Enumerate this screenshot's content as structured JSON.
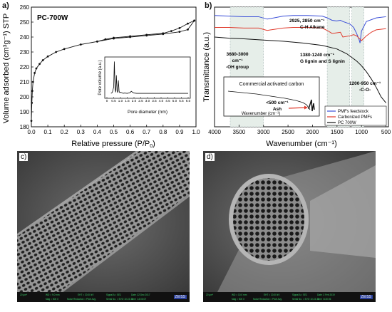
{
  "chart_data": [
    {
      "id": "a",
      "type": "line",
      "panel_label": "a)",
      "title": "PC-700W",
      "xlabel": "Relative pressure (P/P",
      "xlabel_sub": "0",
      "xlabel_tail": ")",
      "ylabel": "Volume adsorbed (cm³g⁻¹) STP",
      "xlim": [
        0,
        1.0
      ],
      "ylim": [
        180,
        260
      ],
      "xticks": [
        "0.0",
        "0.1",
        "0.2",
        "0.3",
        "0.4",
        "0.5",
        "0.6",
        "0.7",
        "0.8",
        "0.9",
        "1.0"
      ],
      "yticks": [
        "180",
        "190",
        "200",
        "210",
        "220",
        "230",
        "240",
        "250",
        "260"
      ],
      "series": [
        {
          "role": "adsorption",
          "x": [
            0.0,
            0.003,
            0.006,
            0.01,
            0.02,
            0.03,
            0.05,
            0.07,
            0.1,
            0.15,
            0.2,
            0.3,
            0.4,
            0.5,
            0.6,
            0.7,
            0.8,
            0.9,
            0.95,
            0.99
          ],
          "y": [
            184,
            196,
            204,
            210,
            216,
            219,
            222,
            224.5,
            227,
            230,
            232,
            235,
            237,
            239,
            240,
            241,
            242,
            243.5,
            245,
            251
          ]
        },
        {
          "role": "desorption",
          "x": [
            0.99,
            0.95,
            0.9,
            0.85,
            0.8,
            0.7,
            0.6,
            0.5,
            0.45,
            0.4
          ],
          "y": [
            251,
            249,
            246,
            244,
            242.5,
            241.5,
            240.5,
            239.5,
            238.5,
            237
          ]
        }
      ],
      "inset": {
        "xlabel": "Pore diameter (nm)",
        "ylabel": "Pore volume (a.u.)",
        "xlim": [
          0,
          6.0
        ],
        "xticks": [
          "0",
          "0.5",
          "1.0",
          "1.5",
          "2.0",
          "2.5",
          "3.0",
          "3.5",
          "4.0",
          "4.5",
          "5.0",
          "5.5",
          "6.0"
        ],
        "x": [
          0.3,
          0.4,
          0.5,
          0.55,
          0.6,
          0.65,
          0.7,
          0.75,
          0.8,
          0.85,
          0.9,
          0.95,
          1.0,
          1.1,
          1.2,
          1.3,
          1.5,
          1.7,
          1.8,
          1.9,
          2.0,
          2.2,
          2.5,
          3.0,
          4.0,
          5.0,
          6.0
        ],
        "y": [
          0.02,
          0.05,
          0.2,
          0.95,
          0.15,
          0.05,
          0.55,
          0.1,
          0.04,
          0.4,
          0.08,
          0.04,
          0.05,
          0.04,
          0.02,
          0.03,
          0.02,
          0.04,
          0.08,
          0.05,
          0.03,
          0.02,
          0.02,
          0.02,
          0.02,
          0.02,
          0.02
        ]
      }
    },
    {
      "id": "b",
      "type": "line",
      "panel_label": "b)",
      "xlabel": "Wavenumber (cm⁻¹)",
      "ylabel": "Transmittance (a.u.)",
      "xlim": [
        4000,
        450
      ],
      "xticks": [
        "4000",
        "3500",
        "3000",
        "2500",
        "2000",
        "1500",
        "1000",
        "500"
      ],
      "annotations": [
        {
          "text": "2925, 2850 cm⁻¹",
          "sub": "C-H Alkane"
        },
        {
          "text": "1380-1240 cm⁻¹",
          "sub": "G lignin and S lignin"
        },
        {
          "text": "3680-3000",
          "sub": "cm⁻¹"
        },
        {
          "text": "-OH group"
        },
        {
          "text": "1200-950 cm⁻¹",
          "sub": "-C-O-"
        }
      ],
      "series": [
        {
          "name": "PMFs feedstock",
          "color": "#3b4fd8",
          "x": [
            4000,
            3700,
            3400,
            3100,
            2925,
            2850,
            2600,
            2400,
            2100,
            1800,
            1700,
            1600,
            1510,
            1430,
            1380,
            1240,
            1160,
            1100,
            1050,
            1030,
            1000,
            900,
            700,
            500
          ],
          "y": [
            93,
            92.5,
            92,
            92,
            90,
            90.5,
            92.5,
            93,
            93,
            92.5,
            91,
            89,
            88.5,
            89,
            88,
            86,
            83,
            78,
            73,
            70,
            80,
            88,
            91,
            92
          ]
        },
        {
          "name": "Carbonized PMFs",
          "color": "#e03a2c",
          "x": [
            4000,
            3700,
            3400,
            3100,
            2925,
            2850,
            2600,
            2400,
            2100,
            1800,
            1700,
            1600,
            1510,
            1430,
            1380,
            1240,
            1160,
            1100,
            1050,
            1000,
            900,
            800,
            700,
            500
          ],
          "y": [
            83,
            83,
            82.5,
            82.5,
            80.5,
            81,
            82.5,
            83,
            83,
            82.5,
            80.5,
            78,
            78.5,
            79,
            75,
            76,
            77,
            76,
            74,
            72,
            76,
            79,
            81,
            82
          ]
        },
        {
          "name": "PC 700W",
          "color": "#111111",
          "x": [
            4000,
            3700,
            3400,
            3000,
            2600,
            2200,
            1800,
            1500,
            1300,
            1100,
            1000,
            900,
            800,
            700,
            600,
            500
          ],
          "y": [
            75,
            74,
            73.5,
            72.5,
            71.5,
            70,
            68,
            65,
            61,
            55,
            51,
            46,
            40,
            33,
            25,
            20
          ]
        }
      ],
      "inset": {
        "title": "Commercial activated carbon",
        "xlabel": "Wavenumber (cm⁻¹)",
        "annotation": "<500 cm⁻¹",
        "annotation_sub": "Ash"
      },
      "legend_position": "bottom-right"
    }
  ],
  "sem": [
    {
      "label": "c)",
      "bar": [
        "20 µm*",
        "WD = 9.0 mm",
        "EHT = 20.00 kV",
        "Signal A = SE1",
        "Date :22 Dec 2017",
        "Mag = 500 X",
        "Noise Reduction = Pixel Avg.",
        "Serial No. = EVO 10.15.11",
        "Time :14:06:07"
      ],
      "logo": "ZEISS"
    },
    {
      "label": "d)",
      "bar": [
        "20 µm*",
        "WD = 10.0 mm",
        "EHT = 20.00 kV",
        "Signal A = SE1",
        "Date :2 Feb 2019",
        "Mag = 500 X",
        "Noise Reduction = Pixel Avg.",
        "Serial No. = EVO 10.15.11",
        "Time :8:30:06"
      ],
      "logo": "ZEISS"
    }
  ]
}
